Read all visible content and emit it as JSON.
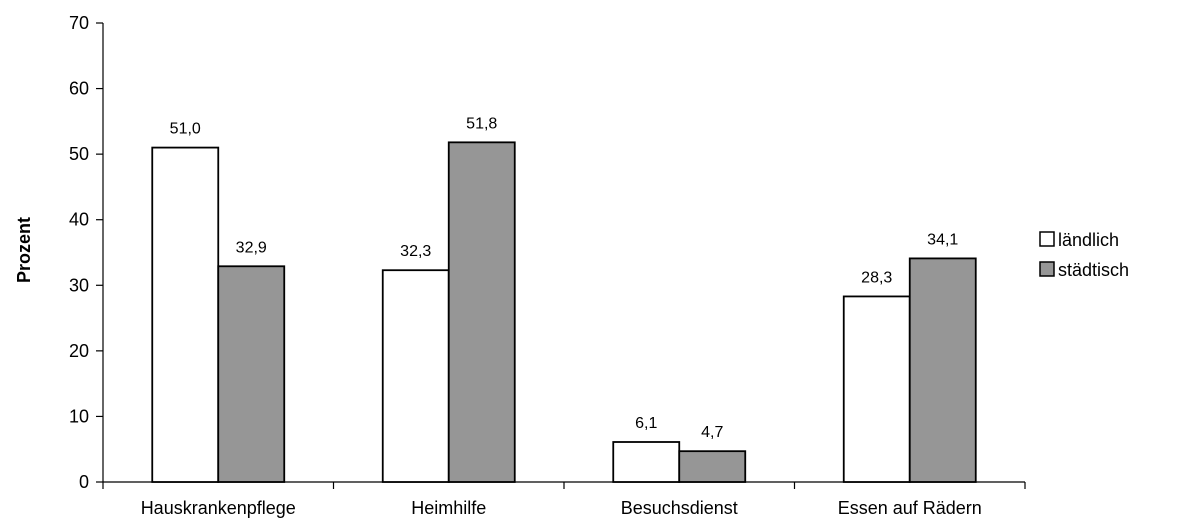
{
  "chart_data": {
    "type": "bar",
    "categories": [
      "Hauskrankenpflege",
      "Heimhilfe",
      "Besuchsdienst",
      "Essen auf Rädern"
    ],
    "series": [
      {
        "name": "ländlich",
        "values": [
          51.0,
          32.3,
          6.1,
          28.3
        ],
        "labels": [
          "51,0",
          "32,3",
          "6,1",
          "28,3"
        ],
        "color": "#ffffff"
      },
      {
        "name": "städtisch",
        "values": [
          32.9,
          51.8,
          4.7,
          34.1
        ],
        "labels": [
          "32,9",
          "51,8",
          "4,7",
          "34,1"
        ],
        "color": "#969696"
      }
    ],
    "ylabel": "Prozent",
    "ylim": [
      0,
      70
    ],
    "yticks": [
      0,
      10,
      20,
      30,
      40,
      50,
      60,
      70
    ],
    "ytick_labels": [
      "0",
      "10",
      "20",
      "30",
      "40",
      "50",
      "60",
      "70"
    ],
    "grid": false,
    "legend": "right"
  }
}
